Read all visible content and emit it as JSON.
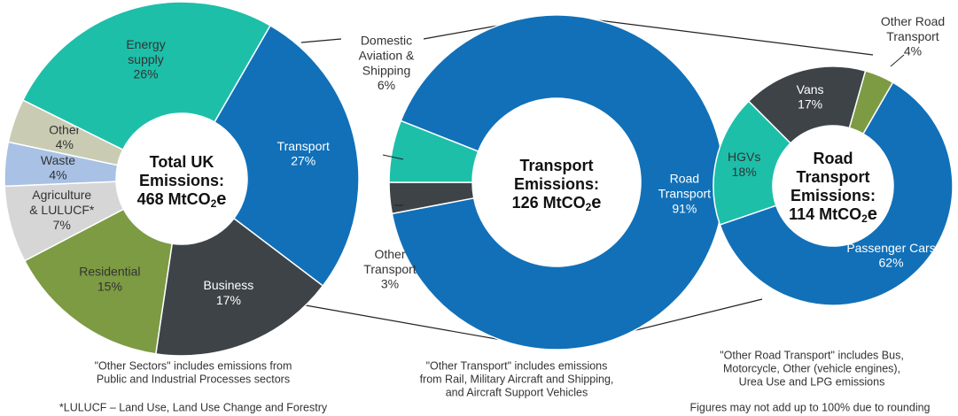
{
  "chart_data": [
    {
      "type": "donut",
      "center_lines": [
        "Total UK",
        "Emissions:"
      ],
      "center_value": "468 MtCO",
      "center_sub": "2",
      "center_suffix": "e",
      "categories": [
        "Transport",
        "Business",
        "Residential",
        "Agriculture & LULUCF*",
        "Waste",
        "Other",
        "Energy supply"
      ],
      "values": [
        27,
        17,
        15,
        7,
        4,
        4,
        26
      ],
      "value_labels": [
        "27%",
        "17%",
        "15%",
        "7%",
        "4%",
        "4%",
        "26%"
      ],
      "colors": [
        "#1170b8",
        "#3e4348",
        "#7c9b43",
        "#d6d6d6",
        "#a8c1e4",
        "#c9ccb3",
        "#1dbfa9"
      ]
    },
    {
      "type": "donut",
      "center_lines": [
        "Transport",
        "Emissions:"
      ],
      "center_value": "126 MtCO",
      "center_sub": "2",
      "center_suffix": "e",
      "categories": [
        "Road Transport",
        "Other Transport",
        "Domestic Aviation & Shipping"
      ],
      "values": [
        91,
        3,
        6
      ],
      "value_labels": [
        "91%",
        "3%",
        "6%"
      ],
      "colors": [
        "#1170b8",
        "#3e4348",
        "#1dbfa9"
      ]
    },
    {
      "type": "donut",
      "center_lines": [
        "Road",
        "Transport",
        "Emissions:"
      ],
      "center_value": "114 MtCO",
      "center_sub": "2",
      "center_suffix": "e",
      "categories": [
        "Passenger Cars",
        "HGVs",
        "Vans",
        "Other Road Transport"
      ],
      "values": [
        62,
        18,
        17,
        4
      ],
      "value_labels": [
        "62%",
        "18%",
        "17%",
        "4%"
      ],
      "colors": [
        "#1170b8",
        "#1dbfa9",
        "#3e4348",
        "#7c9b43"
      ]
    }
  ],
  "notes": [
    [
      "\"Other Sectors\" includes emissions from",
      "Public and Industrial Processes sectors"
    ],
    [
      "*LULUCF – Land Use, Land Use Change and Forestry"
    ],
    [
      "\"Other Transport\" includes emissions",
      "from Rail, Military Aircraft and Shipping,",
      "and Aircraft Support Vehicles"
    ],
    [
      "\"Other Road Transport\" includes Bus,",
      "Motorcycle, Other (vehicle engines),",
      "Urea Use and LPG emissions"
    ],
    [
      "Figures may not add up to 100% due to rounding"
    ]
  ]
}
